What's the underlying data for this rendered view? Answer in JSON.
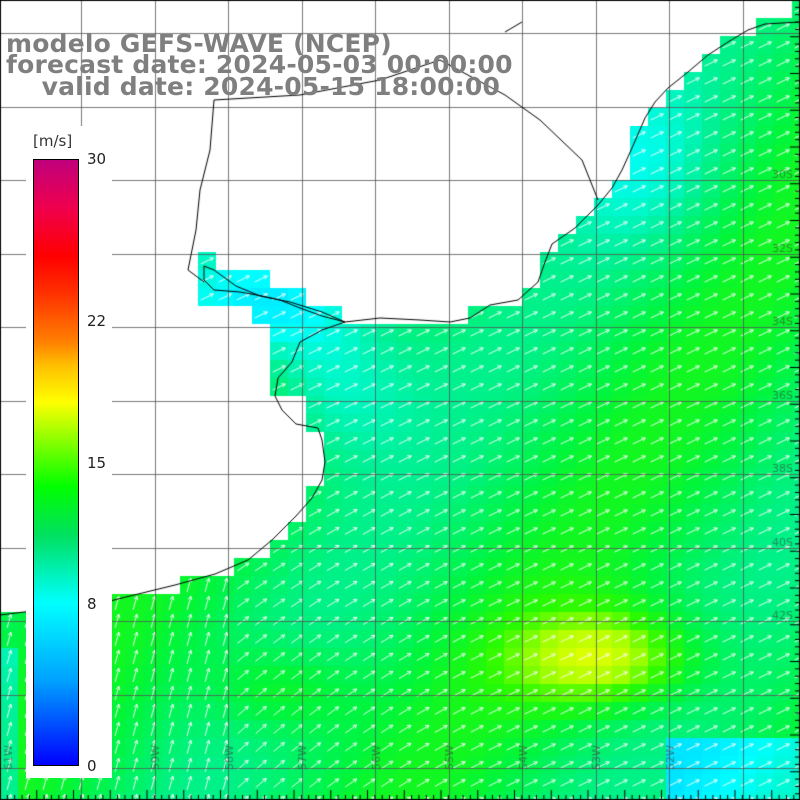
{
  "title": {
    "line1": "modelo GEFS-WAVE (NCEP)",
    "line2": "forecast date: 2024-05-03 00:00:00",
    "line3": "    valid date: 2024-05-15 18:00:00"
  },
  "colorbar": {
    "unit": "[m/s]",
    "range": [
      0,
      30
    ],
    "ticks": [
      "30",
      "22",
      "15",
      "8",
      "0"
    ],
    "tick_values": [
      30,
      22,
      15,
      8,
      0
    ]
  },
  "map": {
    "variable": "wind speed with direction arrows",
    "colors": {
      "land": "#ffffff",
      "grid": "#000000",
      "coast": "#000000",
      "arrow": "#ffffff"
    },
    "grid_lines": "on",
    "lat_labels": [
      "30S",
      "32S",
      "34S",
      "36S",
      "38S",
      "40S",
      "42S"
    ],
    "lon_labels": [
      "61W",
      "60W",
      "59W",
      "58W",
      "57W",
      "56W",
      "55W",
      "54W",
      "53W",
      "52W"
    ]
  }
}
